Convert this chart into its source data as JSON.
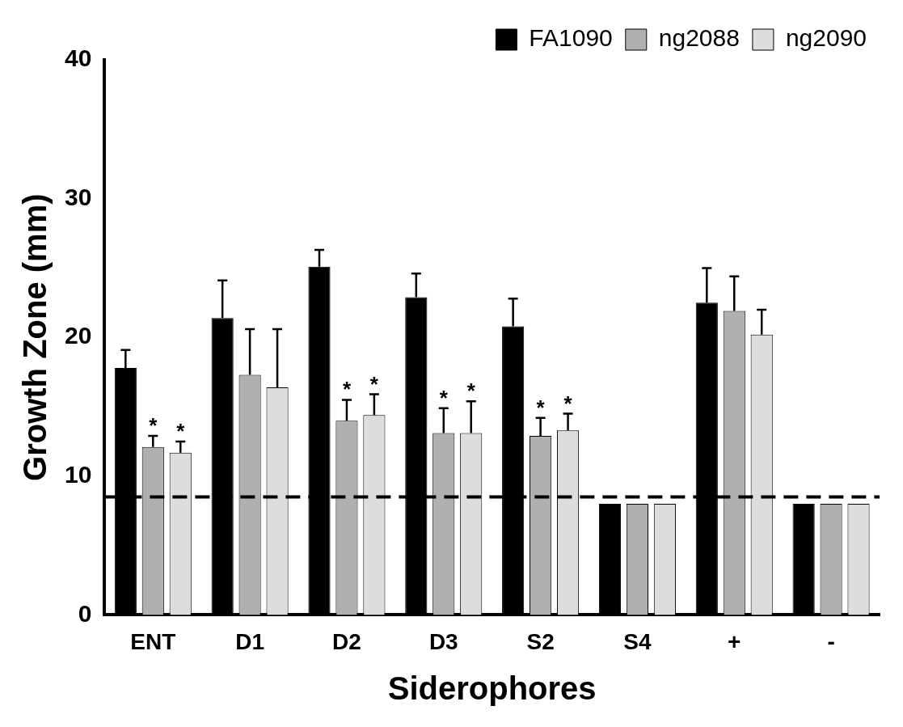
{
  "chart_data": {
    "type": "bar",
    "xlabel": "Siderophores",
    "ylabel": "Growth Zone (mm)",
    "categories": [
      "ENT",
      "D1",
      "D2",
      "D3",
      "S2",
      "S4",
      "+",
      "-"
    ],
    "ylim": [
      0,
      40
    ],
    "yticks": [
      0,
      10,
      20,
      30,
      40
    ],
    "grid": false,
    "legend": "top right",
    "series": [
      {
        "name": "FA1090",
        "color": "#000000",
        "values": [
          17.8,
          21.4,
          25.1,
          22.9,
          20.8,
          8.0,
          22.5,
          8.0
        ],
        "errors": [
          [
            17.8,
            19.1
          ],
          [
            21.4,
            24.1
          ],
          [
            25.1,
            26.3
          ],
          [
            22.9,
            24.6
          ],
          [
            20.8,
            22.8
          ],
          null,
          [
            22.5,
            25.0
          ],
          null
        ]
      },
      {
        "name": "ng2088",
        "color": "#b0b0b0",
        "values": [
          12.1,
          17.3,
          14.0,
          13.1,
          12.9,
          8.0,
          21.9,
          8.0
        ],
        "errors": [
          [
            12.1,
            12.9
          ],
          [
            17.3,
            20.6
          ],
          [
            14.0,
            15.5
          ],
          [
            13.1,
            14.9
          ],
          [
            12.9,
            14.2
          ],
          null,
          [
            21.9,
            24.4
          ],
          null
        ],
        "value_labels": [
          "*",
          null,
          "*",
          "*",
          "*",
          null,
          null,
          null
        ]
      },
      {
        "name": "ng2090",
        "color": "#dddddd",
        "values": [
          11.7,
          16.4,
          14.4,
          13.1,
          13.3,
          8.0,
          20.2,
          8.0
        ],
        "errors": [
          [
            11.7,
            12.5
          ],
          [
            16.4,
            20.6
          ],
          [
            14.4,
            15.9
          ],
          [
            13.1,
            15.4
          ],
          [
            13.3,
            14.5
          ],
          null,
          [
            20.2,
            22.0
          ],
          null
        ],
        "value_labels": [
          "*",
          null,
          "*",
          "*",
          "*",
          null,
          null,
          null
        ]
      }
    ],
    "ref_lines": [
      {
        "axis": "y",
        "value": 8.5,
        "color": "#000000",
        "line_style": "dashed"
      }
    ]
  }
}
